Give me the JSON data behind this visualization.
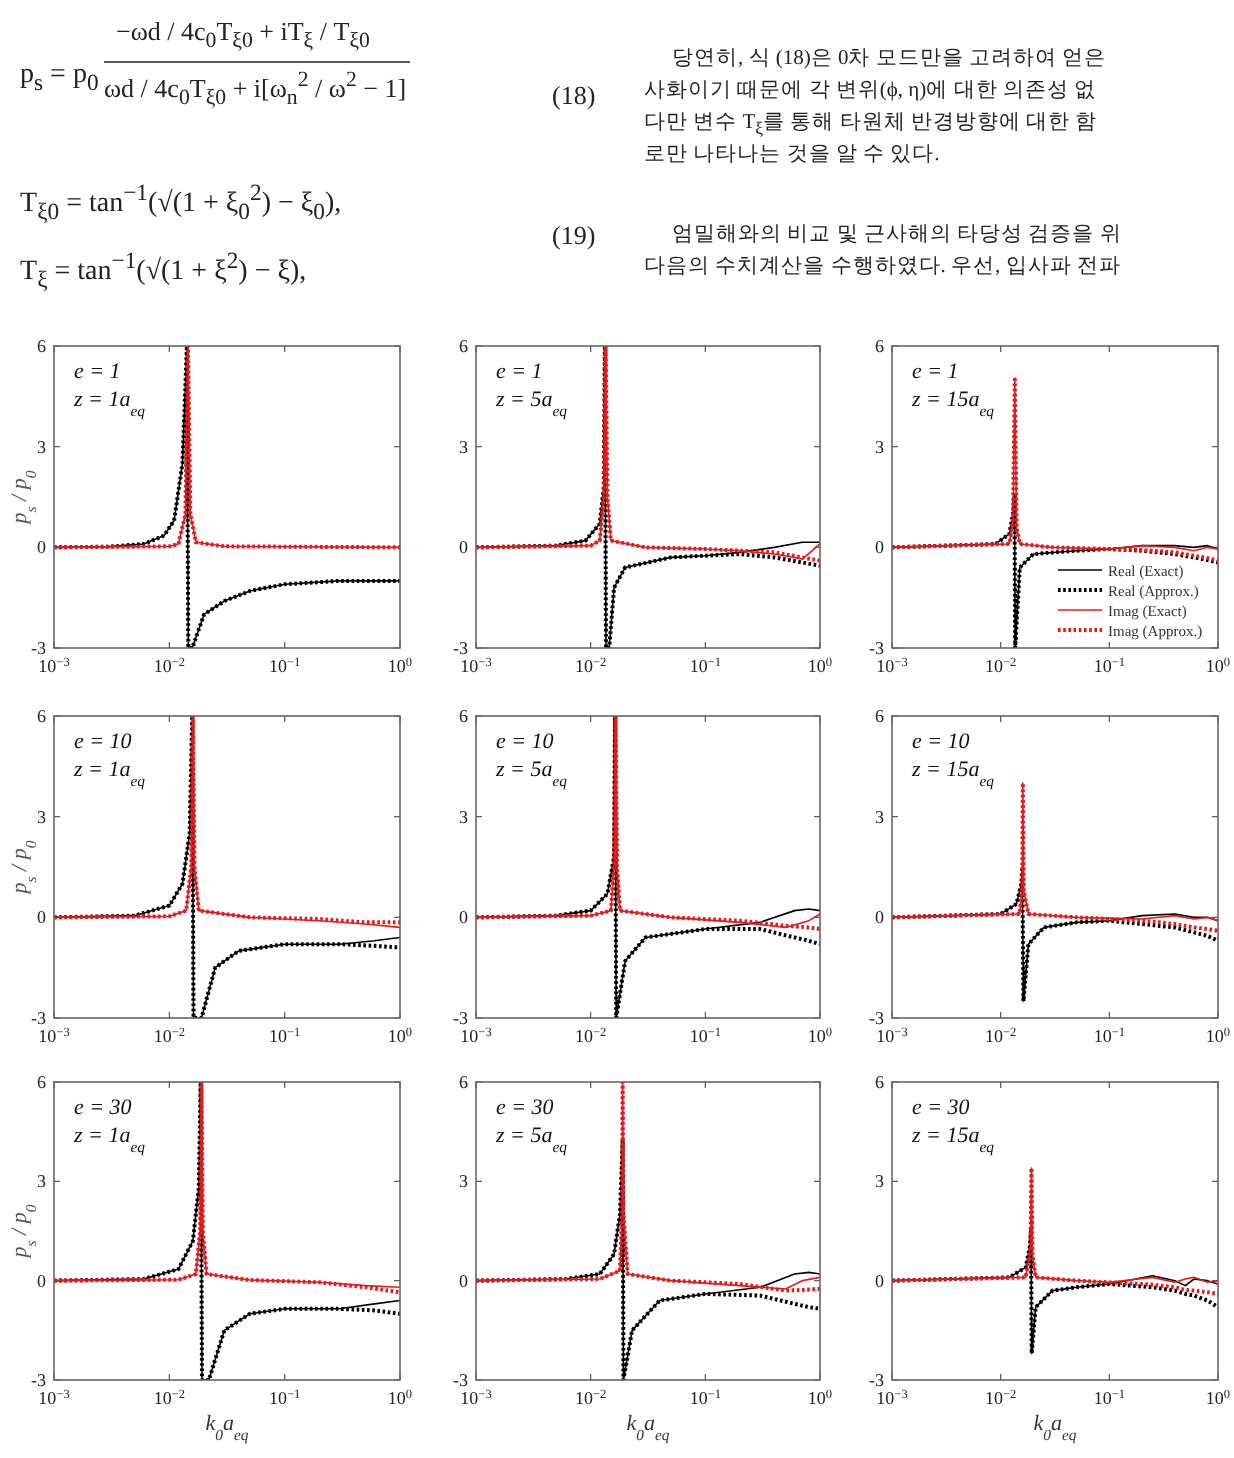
{
  "chart_data": [
    {
      "type": "other",
      "annotations": [
        "p$_{s}$ = p$_{0}$",
        "−ωd / 4c$_{0}$T$_{ξ0}$ + iT$_{ξ}$ / T$_{ξ0}$",
        "ωd / 4c$_{0}$T$_{ξ0}$ + i[ω$_{n}$$^{2}$ / ω$^{2}$ − 1]",
        "T$_{ξ0}$ = tan$^{−1}$(√(1 + ξ$_{0}$$^{2}$) − ξ$_{0}$),",
        "T$_{ξ}$ = tan$^{−1}$(√(1 + ξ$^{2}$) − ξ),",
        "(18)",
        "(19)",
        "당연히, 식 (18)은 0차 모드만을 고려하여 얻은",
        "사화이기 때문에 각 변위(ϕ, η)에 대한 의존성 없",
        "다만 변수 T$_{ξ}$를 통해 타원체 반경방향에 대한 함",
        "로만 나타나는 것을 알 수 있다.",
        "엄밀해와의 비교 및 근사해의 타당성 검증을 위",
        "다음의 수치계산을 수행하였다. 우선, 입사파 전파"
      ]
    },
    {
      "type": "line",
      "log": "x",
      "xlim": [
        0.001,
        1
      ],
      "ylim": [
        -3,
        6
      ],
      "xticks": [
        {
          "value": 0.001,
          "label": "10$^{−3}$"
        },
        {
          "value": 0.01,
          "label": "10$^{−2}$"
        },
        {
          "value": 0.1,
          "label": "10$^{−1}$"
        },
        {
          "value": 1,
          "label": "10$^{0}$"
        }
      ],
      "yticks": [
        -3,
        0,
        3,
        6
      ],
      "ylabel": "p$_{s}$ / p$_{0}$",
      "annotations": [
        "e = 1",
        "z = 1a$_{eq}$"
      ],
      "series": [
        {
          "color": "#000000",
          "line_style": "solid",
          "x": [
            0.001,
            0.003,
            0.006,
            0.009,
            0.011,
            0.013,
            0.0142,
            0.0146,
            0.0158,
            0.02,
            0.03,
            0.05,
            0.1,
            0.3,
            1
          ],
          "values": [
            0,
            0.02,
            0.1,
            0.35,
            0.8,
            2.5,
            6,
            -3,
            -3,
            -2,
            -1.6,
            -1.3,
            -1.1,
            -1,
            -1
          ]
        },
        {
          "color": "#000000",
          "line_style": "dotted",
          "x": [
            0.001,
            0.003,
            0.006,
            0.009,
            0.011,
            0.013,
            0.0142,
            0.0146,
            0.0158,
            0.02,
            0.03,
            0.05,
            0.1,
            0.3,
            1
          ],
          "values": [
            0,
            0.02,
            0.1,
            0.35,
            0.8,
            2.5,
            6,
            -3,
            -3,
            -2,
            -1.6,
            -1.3,
            -1.1,
            -1,
            -1
          ]
        },
        {
          "color": "#e41a1c",
          "line_style": "solid",
          "x": [
            0.001,
            0.01,
            0.012,
            0.0138,
            0.0142,
            0.0145,
            0.0148,
            0.0152,
            0.017,
            0.03,
            1
          ],
          "values": [
            0,
            0.03,
            0.1,
            1,
            4,
            6,
            4,
            1,
            0.15,
            0.03,
            0
          ]
        },
        {
          "color": "#e41a1c",
          "line_style": "dotted",
          "x": [
            0.001,
            0.01,
            0.012,
            0.0138,
            0.0142,
            0.0145,
            0.0148,
            0.0152,
            0.017,
            0.03,
            1
          ],
          "values": [
            0,
            0.03,
            0.1,
            1,
            4,
            6,
            4,
            1,
            0.15,
            0.03,
            0
          ]
        }
      ]
    },
    {
      "type": "line",
      "log": "x",
      "xlim": [
        0.001,
        1
      ],
      "ylim": [
        -3,
        6
      ],
      "xticks": [
        {
          "value": 0.001,
          "label": "10$^{−3}$"
        },
        {
          "value": 0.01,
          "label": "10$^{−2}$"
        },
        {
          "value": 0.1,
          "label": "10$^{−1}$"
        },
        {
          "value": 1,
          "label": "10$^{0}$"
        }
      ],
      "yticks": [
        -3,
        0,
        3,
        6
      ],
      "annotations": [
        "e = 1",
        "z = 5a$_{eq}$"
      ],
      "series": [
        {
          "color": "#000000",
          "line_style": "solid",
          "x": [
            0.001,
            0.005,
            0.009,
            0.012,
            0.013,
            0.0133,
            0.0136,
            0.0145,
            0.016,
            0.02,
            0.05,
            0.1,
            0.2,
            0.4,
            0.7,
            1
          ],
          "values": [
            0,
            0.05,
            0.2,
            0.7,
            1.8,
            6,
            -3,
            -3,
            -1.2,
            -0.6,
            -0.3,
            -0.25,
            -0.15,
            0,
            0.15,
            0.15
          ]
        },
        {
          "color": "#000000",
          "line_style": "dotted",
          "x": [
            0.001,
            0.005,
            0.009,
            0.012,
            0.013,
            0.0133,
            0.0136,
            0.0145,
            0.016,
            0.02,
            0.05,
            0.1,
            0.2,
            0.4,
            0.7,
            1
          ],
          "values": [
            0,
            0.05,
            0.2,
            0.7,
            1.8,
            6,
            -3,
            -3,
            -1.2,
            -0.6,
            -0.3,
            -0.25,
            -0.2,
            -0.3,
            -0.45,
            -0.55
          ]
        },
        {
          "color": "#e41a1c",
          "line_style": "solid",
          "x": [
            0.001,
            0.01,
            0.012,
            0.013,
            0.0135,
            0.014,
            0.015,
            0.03,
            0.1,
            0.2,
            0.4,
            0.7,
            1
          ],
          "values": [
            0,
            0.05,
            0.2,
            1.5,
            6,
            1.5,
            0.2,
            0,
            -0.05,
            -0.1,
            -0.2,
            -0.35,
            0.1
          ]
        },
        {
          "color": "#e41a1c",
          "line_style": "dotted",
          "x": [
            0.001,
            0.01,
            0.012,
            0.013,
            0.0135,
            0.014,
            0.015,
            0.03,
            0.1,
            0.2,
            0.4,
            0.7,
            1
          ],
          "values": [
            0,
            0.05,
            0.2,
            1.5,
            6,
            1.5,
            0.2,
            0,
            -0.05,
            -0.1,
            -0.15,
            -0.3,
            -0.4
          ]
        }
      ]
    },
    {
      "type": "line",
      "log": "x",
      "xlim": [
        0.001,
        1
      ],
      "ylim": [
        -3,
        6
      ],
      "xticks": [
        {
          "value": 0.001,
          "label": "10$^{−3}$"
        },
        {
          "value": 0.01,
          "label": "10$^{−2}$"
        },
        {
          "value": 0.1,
          "label": "10$^{−1}$"
        },
        {
          "value": 1,
          "label": "10$^{0}$"
        }
      ],
      "yticks": [
        -3,
        0,
        3,
        6
      ],
      "annotations": [
        "e = 1",
        "z = 15a$_{eq}$"
      ],
      "legend": "bottom right",
      "series": [
        {
          "name": "Real (Exact)",
          "color": "#000000",
          "line_style": "solid",
          "x": [
            0.001,
            0.009,
            0.012,
            0.013,
            0.0134,
            0.0136,
            0.015,
            0.02,
            0.05,
            0.1,
            0.2,
            0.4,
            0.6,
            0.8,
            1
          ],
          "values": [
            0,
            0.1,
            0.4,
            1,
            1.5,
            -3,
            -0.6,
            -0.2,
            -0.1,
            -0.05,
            0.05,
            0.05,
            0,
            0.05,
            -0.05
          ]
        },
        {
          "name": "Real (Approx.)",
          "color": "#000000",
          "line_style": "dotted",
          "x": [
            0.001,
            0.009,
            0.012,
            0.013,
            0.0134,
            0.0136,
            0.015,
            0.02,
            0.05,
            0.1,
            0.2,
            0.4,
            0.6,
            0.8,
            1
          ],
          "values": [
            0,
            0.1,
            0.4,
            1,
            1.5,
            -3,
            -0.6,
            -0.2,
            -0.1,
            -0.05,
            -0.1,
            -0.2,
            -0.3,
            -0.38,
            -0.45
          ]
        },
        {
          "name": "Imag (Exact)",
          "color": "#e41a1c",
          "line_style": "solid",
          "x": [
            0.001,
            0.012,
            0.013,
            0.0135,
            0.014,
            0.015,
            0.03,
            0.1,
            0.2,
            0.4,
            0.6,
            0.8,
            1
          ],
          "values": [
            0,
            0.1,
            0.8,
            5,
            0.6,
            0.1,
            0,
            -0.05,
            0.05,
            0,
            -0.1,
            0,
            -0.05
          ]
        },
        {
          "name": "Imag (Approx.)",
          "color": "#e41a1c",
          "line_style": "dotted",
          "x": [
            0.001,
            0.012,
            0.013,
            0.0135,
            0.014,
            0.015,
            0.03,
            0.1,
            0.2,
            0.4,
            0.6,
            0.8,
            1
          ],
          "values": [
            0,
            0.1,
            0.8,
            5,
            0.6,
            0.1,
            0,
            -0.05,
            -0.08,
            -0.15,
            -0.25,
            -0.32,
            -0.4
          ]
        }
      ]
    },
    {
      "type": "line",
      "log": "x",
      "xlim": [
        0.001,
        1
      ],
      "ylim": [
        -3,
        6
      ],
      "xticks": [
        {
          "value": 0.001,
          "label": "10$^{−3}$"
        },
        {
          "value": 0.01,
          "label": "10$^{−2}$"
        },
        {
          "value": 0.1,
          "label": "10$^{−1}$"
        },
        {
          "value": 1,
          "label": "10$^{0}$"
        }
      ],
      "yticks": [
        -3,
        0,
        3,
        6
      ],
      "ylabel": "p$_{s}$ / p$_{0}$",
      "annotations": [
        "e = 10",
        "z = 1a$_{eq}$"
      ],
      "series": [
        {
          "color": "#000000",
          "line_style": "solid",
          "x": [
            0.001,
            0.005,
            0.01,
            0.013,
            0.015,
            0.0158,
            0.0162,
            0.019,
            0.025,
            0.04,
            0.1,
            0.3,
            0.6,
            1
          ],
          "values": [
            0,
            0.05,
            0.35,
            1,
            2.5,
            6,
            -3,
            -3,
            -1.5,
            -1,
            -0.8,
            -0.8,
            -0.7,
            -0.6
          ]
        },
        {
          "color": "#000000",
          "line_style": "dotted",
          "x": [
            0.001,
            0.005,
            0.01,
            0.013,
            0.015,
            0.0158,
            0.0162,
            0.019,
            0.025,
            0.04,
            0.1,
            0.3,
            0.6,
            1
          ],
          "values": [
            0,
            0.05,
            0.35,
            1,
            2.5,
            6,
            -3,
            -3,
            -1.5,
            -1,
            -0.8,
            -0.8,
            -0.85,
            -0.9
          ]
        },
        {
          "color": "#e41a1c",
          "line_style": "solid",
          "x": [
            0.001,
            0.01,
            0.014,
            0.0155,
            0.016,
            0.0165,
            0.018,
            0.05,
            0.2,
            0.5,
            1
          ],
          "values": [
            0,
            0.03,
            0.2,
            1.5,
            6,
            1.5,
            0.2,
            0,
            -0.1,
            -0.2,
            -0.3
          ]
        },
        {
          "color": "#e41a1c",
          "line_style": "dotted",
          "x": [
            0.001,
            0.01,
            0.014,
            0.0155,
            0.016,
            0.0165,
            0.018,
            0.05,
            0.2,
            0.5,
            1
          ],
          "values": [
            0,
            0.03,
            0.2,
            1.5,
            6,
            1.5,
            0.2,
            0,
            -0.05,
            -0.15,
            -0.15
          ]
        }
      ]
    },
    {
      "type": "line",
      "log": "x",
      "xlim": [
        0.001,
        1
      ],
      "ylim": [
        -3,
        6
      ],
      "xticks": [
        {
          "value": 0.001,
          "label": "10$^{−3}$"
        },
        {
          "value": 0.01,
          "label": "10$^{−2}$"
        },
        {
          "value": 0.1,
          "label": "10$^{−1}$"
        },
        {
          "value": 1,
          "label": "10$^{0}$"
        }
      ],
      "yticks": [
        -3,
        0,
        3,
        6
      ],
      "annotations": [
        "e = 10",
        "z = 5a$_{eq}$"
      ],
      "series": [
        {
          "color": "#000000",
          "line_style": "solid",
          "x": [
            0.001,
            0.005,
            0.01,
            0.014,
            0.016,
            0.0163,
            0.0167,
            0.02,
            0.03,
            0.1,
            0.3,
            0.6,
            0.8,
            1
          ],
          "values": [
            0,
            0.05,
            0.2,
            0.7,
            1.8,
            6,
            -3,
            -1.3,
            -0.6,
            -0.35,
            -0.15,
            0.2,
            0.25,
            0.2
          ]
        },
        {
          "color": "#000000",
          "line_style": "dotted",
          "x": [
            0.001,
            0.005,
            0.01,
            0.014,
            0.016,
            0.0163,
            0.0167,
            0.02,
            0.03,
            0.1,
            0.3,
            0.6,
            0.8,
            1
          ],
          "values": [
            0,
            0.05,
            0.2,
            0.7,
            1.8,
            6,
            -3,
            -1.3,
            -0.6,
            -0.35,
            -0.35,
            -0.6,
            -0.7,
            -0.8
          ]
        },
        {
          "color": "#e41a1c",
          "line_style": "solid",
          "x": [
            0.001,
            0.01,
            0.015,
            0.016,
            0.0165,
            0.017,
            0.018,
            0.05,
            0.2,
            0.5,
            0.8,
            1
          ],
          "values": [
            0,
            0.05,
            0.2,
            1.5,
            6,
            1.5,
            0.2,
            0,
            -0.15,
            -0.3,
            -0.1,
            0.1
          ]
        },
        {
          "color": "#e41a1c",
          "line_style": "dotted",
          "x": [
            0.001,
            0.01,
            0.015,
            0.016,
            0.0165,
            0.017,
            0.018,
            0.05,
            0.2,
            0.5,
            0.8,
            1
          ],
          "values": [
            0,
            0.05,
            0.2,
            1.5,
            6,
            1.5,
            0.2,
            0,
            -0.1,
            -0.25,
            -0.3,
            -0.35
          ]
        }
      ]
    },
    {
      "type": "line",
      "log": "x",
      "xlim": [
        0.001,
        1
      ],
      "ylim": [
        -3,
        6
      ],
      "xticks": [
        {
          "value": 0.001,
          "label": "10$^{−3}$"
        },
        {
          "value": 0.01,
          "label": "10$^{−2}$"
        },
        {
          "value": 0.1,
          "label": "10$^{−1}$"
        },
        {
          "value": 1,
          "label": "10$^{0}$"
        }
      ],
      "yticks": [
        -3,
        0,
        3,
        6
      ],
      "annotations": [
        "e = 10",
        "z = 15a$_{eq}$"
      ],
      "series": [
        {
          "color": "#000000",
          "line_style": "solid",
          "x": [
            0.001,
            0.01,
            0.014,
            0.0155,
            0.0158,
            0.0162,
            0.018,
            0.025,
            0.05,
            0.1,
            0.2,
            0.4,
            0.6,
            0.8,
            1
          ],
          "values": [
            0,
            0.1,
            0.4,
            1,
            1.5,
            -2.5,
            -0.8,
            -0.3,
            -0.15,
            -0.1,
            0.05,
            0.1,
            0,
            0,
            -0.1
          ]
        },
        {
          "color": "#000000",
          "line_style": "dotted",
          "x": [
            0.001,
            0.01,
            0.014,
            0.0155,
            0.0158,
            0.0162,
            0.018,
            0.025,
            0.05,
            0.1,
            0.2,
            0.4,
            0.6,
            0.8,
            1
          ],
          "values": [
            0,
            0.1,
            0.4,
            1,
            1.5,
            -2.5,
            -0.8,
            -0.3,
            -0.15,
            -0.1,
            -0.2,
            -0.3,
            -0.45,
            -0.55,
            -0.7
          ]
        },
        {
          "color": "#e41a1c",
          "line_style": "solid",
          "x": [
            0.001,
            0.015,
            0.0158,
            0.016,
            0.0163,
            0.018,
            0.05,
            0.2,
            0.4,
            0.6,
            0.8,
            1
          ],
          "values": [
            0,
            0.1,
            1,
            4,
            0.8,
            0.1,
            0,
            -0.05,
            0.05,
            -0.05,
            0,
            -0.1
          ]
        },
        {
          "color": "#e41a1c",
          "line_style": "dotted",
          "x": [
            0.001,
            0.015,
            0.0158,
            0.016,
            0.0163,
            0.018,
            0.05,
            0.2,
            0.4,
            0.6,
            0.8,
            1
          ],
          "values": [
            0,
            0.1,
            1,
            4,
            0.8,
            0.1,
            0,
            -0.1,
            -0.2,
            -0.3,
            -0.35,
            -0.4
          ]
        }
      ]
    },
    {
      "type": "line",
      "log": "x",
      "xlim": [
        0.001,
        1
      ],
      "ylim": [
        -3,
        6
      ],
      "xticks": [
        {
          "value": 0.001,
          "label": "10$^{−3}$"
        },
        {
          "value": 0.01,
          "label": "10$^{−2}$"
        },
        {
          "value": 0.1,
          "label": "10$^{−1}$"
        },
        {
          "value": 1,
          "label": "10$^{0}$"
        }
      ],
      "yticks": [
        -3,
        0,
        3,
        6
      ],
      "ylabel": "p$_{s}$ / p$_{0}$",
      "xlabel": "k$_{0}$a$_{eq}$",
      "annotations": [
        "e = 30",
        "z = 1a$_{eq}$"
      ],
      "series": [
        {
          "color": "#000000",
          "line_style": "solid",
          "x": [
            0.001,
            0.006,
            0.012,
            0.016,
            0.018,
            0.0187,
            0.0192,
            0.022,
            0.03,
            0.05,
            0.1,
            0.3,
            0.6,
            1
          ],
          "values": [
            0,
            0.05,
            0.35,
            1.2,
            2.8,
            6,
            -3,
            -3,
            -1.5,
            -1,
            -0.85,
            -0.85,
            -0.7,
            -0.6
          ]
        },
        {
          "color": "#000000",
          "line_style": "dotted",
          "x": [
            0.001,
            0.006,
            0.012,
            0.016,
            0.018,
            0.0187,
            0.0192,
            0.022,
            0.03,
            0.05,
            0.1,
            0.3,
            0.6,
            1
          ],
          "values": [
            0,
            0.05,
            0.35,
            1.2,
            2.8,
            6,
            -3,
            -3,
            -1.5,
            -1,
            -0.85,
            -0.85,
            -0.9,
            -1
          ]
        },
        {
          "color": "#e41a1c",
          "line_style": "solid",
          "x": [
            0.001,
            0.012,
            0.017,
            0.0185,
            0.019,
            0.0195,
            0.021,
            0.05,
            0.2,
            0.5,
            1
          ],
          "values": [
            0,
            0.03,
            0.2,
            1.5,
            6,
            1.5,
            0.2,
            0.02,
            -0.05,
            -0.15,
            -0.2
          ]
        },
        {
          "color": "#e41a1c",
          "line_style": "dotted",
          "x": [
            0.001,
            0.012,
            0.017,
            0.0185,
            0.019,
            0.0195,
            0.021,
            0.05,
            0.2,
            0.5,
            1
          ],
          "values": [
            0,
            0.03,
            0.2,
            1.5,
            6,
            1.5,
            0.2,
            0.02,
            -0.05,
            -0.2,
            -0.35
          ]
        }
      ]
    },
    {
      "type": "line",
      "log": "x",
      "xlim": [
        0.001,
        1
      ],
      "ylim": [
        -3,
        6
      ],
      "xticks": [
        {
          "value": 0.001,
          "label": "10$^{−3}$"
        },
        {
          "value": 0.01,
          "label": "10$^{−2}$"
        },
        {
          "value": 0.1,
          "label": "10$^{−1}$"
        },
        {
          "value": 1,
          "label": "10$^{0}$"
        }
      ],
      "yticks": [
        -3,
        0,
        3,
        6
      ],
      "xlabel": "k$_{0}$a$_{eq}$",
      "annotations": [
        "e = 30",
        "z = 5a$_{eq}$"
      ],
      "series": [
        {
          "color": "#000000",
          "line_style": "solid",
          "x": [
            0.001,
            0.006,
            0.012,
            0.016,
            0.018,
            0.019,
            0.0193,
            0.023,
            0.04,
            0.1,
            0.3,
            0.6,
            0.8,
            1
          ],
          "values": [
            0,
            0.05,
            0.2,
            0.8,
            2,
            4.2,
            -3,
            -1.5,
            -0.6,
            -0.4,
            -0.2,
            0.2,
            0.25,
            0.2
          ]
        },
        {
          "color": "#000000",
          "line_style": "dotted",
          "x": [
            0.001,
            0.006,
            0.012,
            0.016,
            0.018,
            0.019,
            0.0193,
            0.023,
            0.04,
            0.1,
            0.3,
            0.6,
            0.8,
            1
          ],
          "values": [
            0,
            0.05,
            0.2,
            0.8,
            2,
            4.2,
            -3,
            -1.5,
            -0.6,
            -0.4,
            -0.45,
            -0.7,
            -0.8,
            -0.85
          ]
        },
        {
          "color": "#e41a1c",
          "line_style": "solid",
          "x": [
            0.001,
            0.012,
            0.018,
            0.0188,
            0.019,
            0.0193,
            0.021,
            0.05,
            0.2,
            0.5,
            0.7,
            1
          ],
          "values": [
            0,
            0.05,
            0.3,
            2,
            6,
            2,
            0.2,
            0,
            -0.15,
            -0.25,
            0,
            0.1
          ]
        },
        {
          "color": "#e41a1c",
          "line_style": "dotted",
          "x": [
            0.001,
            0.012,
            0.018,
            0.0188,
            0.019,
            0.0193,
            0.021,
            0.05,
            0.2,
            0.5,
            0.7,
            1
          ],
          "values": [
            0,
            0.05,
            0.3,
            2,
            6,
            2,
            0.2,
            0,
            -0.1,
            -0.3,
            -0.28,
            -0.25
          ]
        }
      ]
    },
    {
      "type": "line",
      "log": "x",
      "xlim": [
        0.001,
        1
      ],
      "ylim": [
        -3,
        6
      ],
      "xticks": [
        {
          "value": 0.001,
          "label": "10$^{−3}$"
        },
        {
          "value": 0.01,
          "label": "10$^{−2}$"
        },
        {
          "value": 0.1,
          "label": "10$^{−1}$"
        },
        {
          "value": 1,
          "label": "10$^{0}$"
        }
      ],
      "yticks": [
        -3,
        0,
        3,
        6
      ],
      "xlabel": "k$_{0}$a$_{eq}$",
      "annotations": [
        "e = 30",
        "z = 15a$_{eq}$"
      ],
      "series": [
        {
          "color": "#000000",
          "line_style": "solid",
          "x": [
            0.001,
            0.012,
            0.017,
            0.0185,
            0.019,
            0.0193,
            0.021,
            0.03,
            0.05,
            0.1,
            0.25,
            0.4,
            0.5,
            0.6,
            0.8,
            1
          ],
          "values": [
            0,
            0.1,
            0.4,
            1,
            1.5,
            -2.2,
            -0.8,
            -0.3,
            -0.2,
            -0.1,
            0.15,
            0,
            -0.15,
            0.05,
            0,
            -0.1
          ]
        },
        {
          "color": "#000000",
          "line_style": "dotted",
          "x": [
            0.001,
            0.012,
            0.017,
            0.0185,
            0.019,
            0.0193,
            0.021,
            0.03,
            0.05,
            0.1,
            0.25,
            0.4,
            0.5,
            0.6,
            0.8,
            1
          ],
          "values": [
            0,
            0.1,
            0.4,
            1,
            1.5,
            -2.2,
            -0.8,
            -0.3,
            -0.2,
            -0.1,
            -0.2,
            -0.3,
            -0.4,
            -0.45,
            -0.6,
            -0.8
          ]
        },
        {
          "color": "#e41a1c",
          "line_style": "solid",
          "x": [
            0.001,
            0.017,
            0.0188,
            0.0192,
            0.0196,
            0.021,
            0.05,
            0.1,
            0.25,
            0.4,
            0.5,
            0.6,
            0.8,
            1
          ],
          "values": [
            0,
            0.1,
            1,
            3.4,
            0.8,
            0.1,
            0,
            -0.05,
            0.1,
            -0.05,
            0.05,
            0.1,
            -0.05,
            0
          ]
        },
        {
          "color": "#e41a1c",
          "line_style": "dotted",
          "x": [
            0.001,
            0.017,
            0.0188,
            0.0192,
            0.0196,
            0.021,
            0.05,
            0.1,
            0.25,
            0.4,
            0.5,
            0.6,
            0.8,
            1
          ],
          "values": [
            0,
            0.1,
            1,
            3.4,
            0.8,
            0.1,
            0,
            -0.05,
            -0.12,
            -0.2,
            -0.28,
            -0.3,
            -0.35,
            -0.4
          ]
        }
      ]
    }
  ]
}
